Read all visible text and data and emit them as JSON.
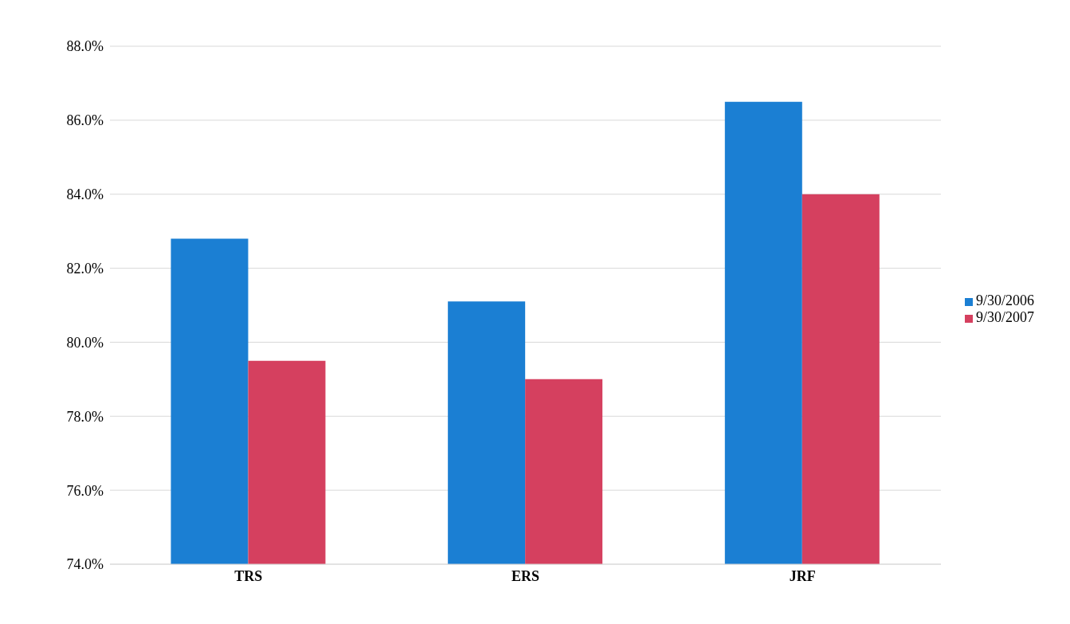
{
  "chart_data": {
    "type": "bar",
    "categories": [
      "TRS",
      "ERS",
      "JRF"
    ],
    "series": [
      {
        "name": "9/30/2006",
        "color": "#1b7fd3",
        "values": [
          82.8,
          81.1,
          86.5
        ]
      },
      {
        "name": "9/30/2007",
        "color": "#d5405f",
        "values": [
          79.5,
          79.0,
          84.0
        ]
      }
    ],
    "ylim": [
      74,
      88
    ],
    "yticks": [
      {
        "value": 74,
        "label": "74.0%"
      },
      {
        "value": 76,
        "label": "76.0%"
      },
      {
        "value": 78,
        "label": "78.0%"
      },
      {
        "value": 80,
        "label": "80.0%"
      },
      {
        "value": 82,
        "label": "82.0%"
      },
      {
        "value": 84,
        "label": "84.0%"
      },
      {
        "value": 86,
        "label": "86.0%"
      },
      {
        "value": 88,
        "label": "88.0%"
      }
    ],
    "grid": "y",
    "legend": "right"
  }
}
